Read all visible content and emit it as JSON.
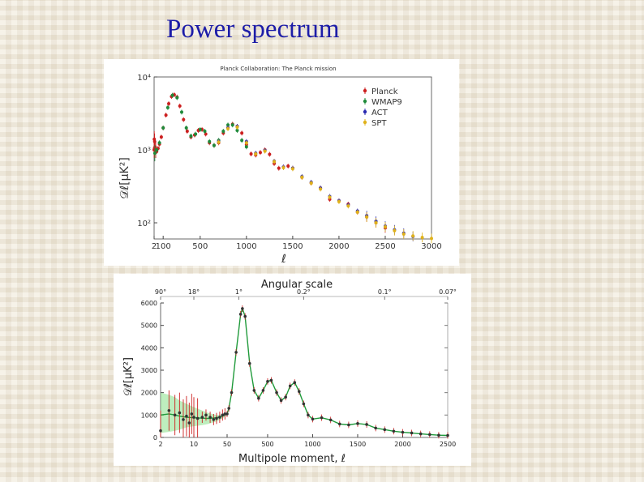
{
  "slide": {
    "title": "Power spectrum"
  },
  "chart_data": [
    {
      "type": "scatter",
      "header": "Planck Collaboration: The Planck mission",
      "ylabel": "𝒟ℓ[μK²]",
      "xlabel": "ℓ",
      "yscale": "log",
      "ylim": [
        60,
        10000
      ],
      "xlim": [
        2,
        3000
      ],
      "xticks": [
        2,
        100,
        500,
        1000,
        1500,
        2000,
        2500,
        3000
      ],
      "ytick_labels": [
        "10⁴",
        "10³",
        "10²"
      ],
      "legend_position": "top-right",
      "series": [
        {
          "name": "Planck",
          "color": "#cc1f1f",
          "x": [
            2,
            4,
            6,
            8,
            12,
            20,
            30,
            45,
            60,
            80,
            100,
            130,
            160,
            190,
            220,
            250,
            280,
            320,
            360,
            400,
            440,
            480,
            520,
            560,
            600,
            650,
            700,
            750,
            800,
            850,
            900,
            950,
            1000,
            1050,
            1100,
            1150,
            1200,
            1250,
            1300,
            1350,
            1400,
            1450,
            1500,
            1600,
            1700,
            1800,
            1900,
            2000,
            2100,
            2200,
            2300,
            2400,
            2500
          ],
          "y": [
            1000,
            1400,
            1050,
            1300,
            1100,
            1000,
            950,
            1050,
            1200,
            1500,
            2000,
            3000,
            4300,
            5400,
            5700,
            5300,
            4000,
            2600,
            1800,
            1500,
            1600,
            1850,
            1900,
            1650,
            1250,
            1150,
            1250,
            1700,
            2000,
            2250,
            2100,
            1700,
            1180,
            880,
            850,
            920,
            1000,
            870,
            650,
            560,
            580,
            600,
            560,
            420,
            350,
            300,
            210,
            200,
            180,
            140,
            120,
            100,
            85
          ]
        },
        {
          "name": "WMAP9",
          "color": "#1f8a3a",
          "x": [
            10,
            30,
            60,
            100,
            150,
            200,
            250,
            300,
            350,
            400,
            450,
            500,
            550,
            600,
            650,
            700,
            750,
            800,
            850,
            900,
            950,
            1000
          ],
          "y": [
            900,
            1000,
            1250,
            2000,
            3800,
            5600,
            5200,
            3300,
            2000,
            1550,
            1650,
            1900,
            1800,
            1300,
            1150,
            1350,
            1800,
            2200,
            2200,
            1850,
            1350,
            1100
          ]
        },
        {
          "name": "ACT",
          "color": "#2a2ab0",
          "x": [
            700,
            800,
            900,
            1000,
            1100,
            1200,
            1300,
            1400,
            1500,
            1600,
            1700,
            1800,
            1900,
            2000,
            2100,
            2200,
            2300,
            2400,
            2500,
            2600,
            2700,
            2800
          ],
          "y": [
            1300,
            2000,
            2100,
            1300,
            900,
            980,
            700,
            580,
            560,
            430,
            360,
            300,
            230,
            200,
            175,
            145,
            125,
            105,
            90,
            80,
            72,
            65
          ]
        },
        {
          "name": "SPT",
          "color": "#e0b21a",
          "x": [
            700,
            800,
            900,
            1000,
            1100,
            1200,
            1300,
            1400,
            1500,
            1600,
            1700,
            1800,
            1900,
            2000,
            2100,
            2200,
            2300,
            2400,
            2500,
            2600,
            2700,
            2800,
            2900,
            3000
          ],
          "y": [
            1280,
            1950,
            2050,
            1250,
            880,
            960,
            690,
            570,
            550,
            420,
            350,
            290,
            225,
            195,
            170,
            140,
            120,
            100,
            88,
            78,
            70,
            66,
            63,
            61
          ]
        }
      ]
    },
    {
      "type": "line",
      "title": "Angular scale",
      "xlabel": "Multipole moment, ℓ",
      "ylabel": "𝒟ℓ[μK²]",
      "ylim": [
        0,
        6000
      ],
      "yticks": [
        0,
        1000,
        2000,
        3000,
        4000,
        5000,
        6000
      ],
      "xticks": [
        2,
        10,
        50,
        500,
        1000,
        1500,
        2000,
        2500
      ],
      "x_scale": "log for ℓ < 50, linear above",
      "top_axis_labels": [
        "90°",
        "18°",
        "1°",
        "0.2°",
        "0.1°",
        "0.07°"
      ],
      "series": [
        {
          "name": "",
          "color": "#1f9a3a",
          "x": [
            2,
            3,
            4,
            5,
            7,
            10,
            15,
            20,
            30,
            40,
            50,
            70,
            100,
            150,
            200,
            220,
            250,
            300,
            350,
            400,
            450,
            500,
            540,
            600,
            650,
            700,
            750,
            800,
            850,
            900,
            950,
            1000,
            1100,
            1200,
            1300,
            1400,
            1500,
            1600,
            1700,
            1800,
            1900,
            2000,
            2100,
            2200,
            2300,
            2400,
            2500
          ],
          "y": [
            1000,
            1050,
            1000,
            950,
            900,
            880,
            860,
            850,
            880,
            950,
            1050,
            1300,
            2000,
            3800,
            5500,
            5750,
            5400,
            3300,
            2100,
            1750,
            2100,
            2500,
            2550,
            2000,
            1650,
            1800,
            2300,
            2450,
            2050,
            1500,
            1000,
            820,
            880,
            780,
            600,
            560,
            620,
            580,
            420,
            350,
            280,
            230,
            200,
            160,
            130,
            100,
            90
          ]
        },
        {
          "name": "",
          "color": "#cc1f1f",
          "x": [
            2,
            3,
            4,
            5,
            6,
            7,
            8,
            9,
            10,
            12,
            15,
            18,
            22,
            26,
            30,
            35,
            40,
            45
          ],
          "y": [
            300,
            1200,
            1000,
            1100,
            800,
            950,
            650,
            1050,
            900,
            850,
            900,
            1000,
            900,
            800,
            850,
            900,
            1000,
            1050
          ]
        }
      ],
      "error_band": {
        "color": "#88e088",
        "x": [
          2,
          3,
          4,
          5,
          7,
          10,
          15,
          20,
          30,
          40,
          50
        ],
        "upper": [
          2000,
          1900,
          1800,
          1650,
          1500,
          1350,
          1200,
          1100,
          1000,
          1000,
          1100
        ],
        "lower": [
          200,
          250,
          300,
          350,
          450,
          500,
          550,
          600,
          720,
          850,
          1000
        ]
      }
    }
  ]
}
